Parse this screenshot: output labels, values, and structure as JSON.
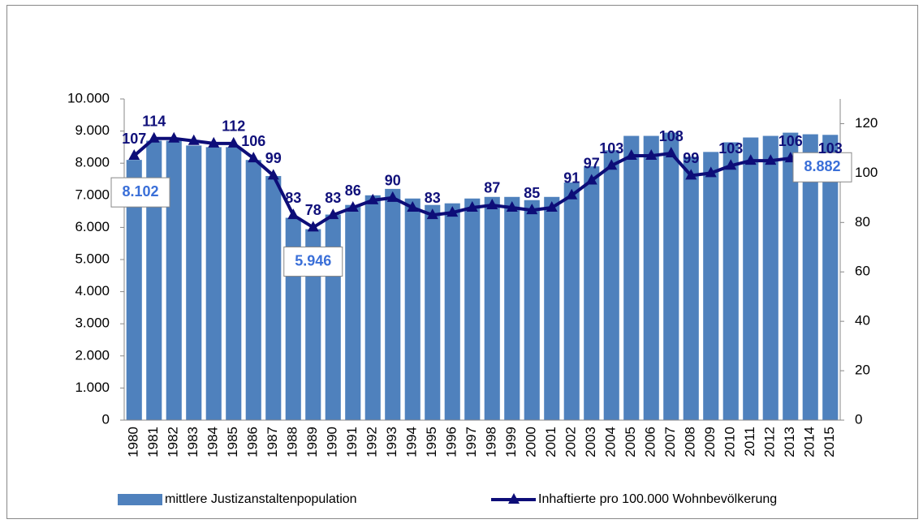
{
  "chart_data": {
    "type": "bar_line",
    "categories": [
      "1980",
      "1981",
      "1982",
      "1983",
      "1984",
      "1985",
      "1986",
      "1987",
      "1988",
      "1989",
      "1990",
      "1991",
      "1992",
      "1993",
      "1994",
      "1995",
      "1996",
      "1997",
      "1998",
      "1999",
      "2000",
      "2001",
      "2002",
      "2003",
      "2004",
      "2005",
      "2006",
      "2007",
      "2008",
      "2009",
      "2010",
      "2011",
      "2012",
      "2013",
      "2014",
      "2015"
    ],
    "series": [
      {
        "name": "mittlere Justizanstaltenpopulation",
        "type": "bar",
        "color": "#4f81bd",
        "values": [
          8102,
          8700,
          8700,
          8550,
          8500,
          8500,
          8100,
          7600,
          6300,
          5946,
          6400,
          6700,
          7000,
          7200,
          6900,
          6700,
          6750,
          6900,
          6950,
          6950,
          6850,
          6950,
          7400,
          7900,
          8400,
          8850,
          8850,
          8950,
          8200,
          8350,
          8650,
          8800,
          8850,
          8950,
          8900,
          8882
        ],
        "value_labels": [
          "8.102",
          null,
          null,
          null,
          null,
          null,
          null,
          null,
          null,
          "5.946",
          null,
          null,
          null,
          null,
          null,
          null,
          null,
          null,
          null,
          null,
          null,
          null,
          null,
          null,
          null,
          null,
          null,
          null,
          null,
          null,
          null,
          null,
          null,
          null,
          null,
          "8.882"
        ]
      },
      {
        "name": "Inhaftierte pro 100.000 Wohnbevölkerung",
        "type": "line",
        "axis": "y2",
        "color": "#0d0d78",
        "values": [
          107,
          114,
          114,
          113,
          112,
          112,
          106,
          99,
          83,
          78,
          83,
          86,
          89,
          90,
          86,
          83,
          84,
          86,
          87,
          86,
          85,
          86,
          91,
          97,
          103,
          107,
          107,
          108,
          99,
          100,
          103,
          105,
          105,
          106,
          105,
          103
        ],
        "value_labels": [
          "107",
          "114",
          null,
          null,
          null,
          "112",
          "106",
          "99",
          "83",
          "78",
          "83",
          "86",
          null,
          "90",
          null,
          "83",
          null,
          null,
          "87",
          null,
          "85",
          null,
          "91",
          "97",
          "103",
          null,
          null,
          "108",
          "99",
          null,
          "103",
          null,
          null,
          "106",
          null,
          "103"
        ]
      }
    ],
    "ylim": [
      0,
      10000
    ],
    "yticks": [
      0,
      {
        "value": 1000,
        "label": "1.000"
      },
      {
        "value": 2000,
        "label": "2.000"
      },
      {
        "value": 3000,
        "label": "3.000"
      },
      {
        "value": 4000,
        "label": "4.000"
      },
      {
        "value": 5000,
        "label": "5.000"
      },
      {
        "value": 6000,
        "label": "6.000"
      },
      {
        "value": 7000,
        "label": "7.000"
      },
      {
        "value": 8000,
        "label": "8.000"
      },
      {
        "value": 9000,
        "label": "9.000"
      },
      {
        "value": 10000,
        "label": "10.000"
      }
    ],
    "y2lim": [
      0,
      130
    ],
    "y2ticks": [
      0,
      20,
      40,
      60,
      80,
      100,
      120
    ],
    "legend": "bottom"
  }
}
